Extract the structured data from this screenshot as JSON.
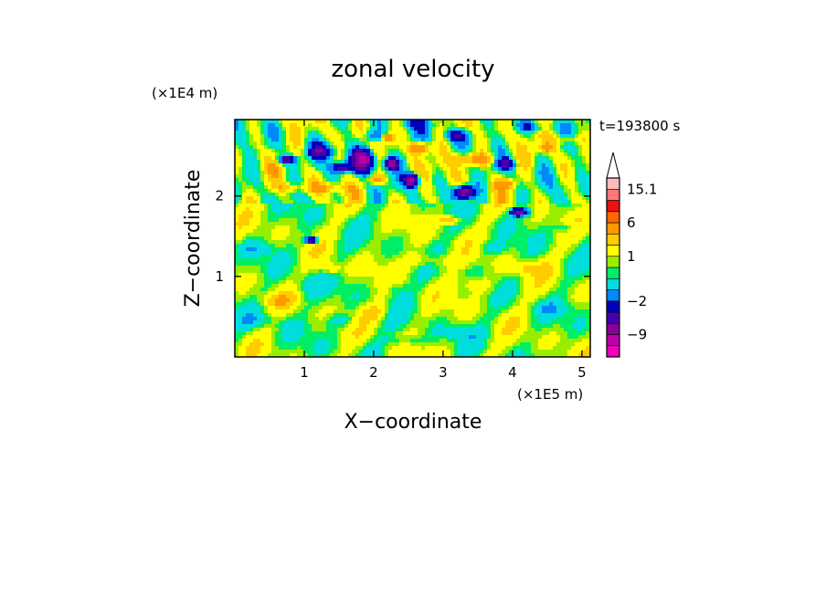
{
  "chart_data": {
    "type": "heatmap",
    "title": "zonal velocity",
    "xlabel": "X−coordinate",
    "ylabel": "Z−coordinate",
    "x_unit_label": "(×1E5 m)",
    "y_unit_label": "(×1E4 m)",
    "time_label": "t=193800 s",
    "xlim": [
      0,
      5.12
    ],
    "ylim": [
      0,
      2.95
    ],
    "x_ticks": [
      1,
      2,
      3,
      4,
      5
    ],
    "y_ticks": [
      1,
      2
    ],
    "x_tick_labels": [
      "1",
      "2",
      "3",
      "4",
      "5"
    ],
    "y_tick_labels": [
      "1",
      "2"
    ],
    "colorbar": {
      "levels": [
        -15,
        -12,
        -9,
        -6,
        -4,
        -2,
        -1,
        0,
        0.5,
        1,
        2,
        3,
        6,
        9,
        12,
        15.1
      ],
      "colors": [
        "#ee00bb",
        "#bb00aa",
        "#880099",
        "#4400aa",
        "#0000bb",
        "#0088ff",
        "#00dddd",
        "#00ee66",
        "#99ee00",
        "#ffff00",
        "#ffcc00",
        "#ff9900",
        "#ff6600",
        "#ee1111",
        "#ff7777",
        "#ffbbbb"
      ],
      "extend_top": true,
      "labels": [
        {
          "value": 15.1,
          "text": "15.1"
        },
        {
          "value": 6,
          "text": "6"
        },
        {
          "value": 1,
          "text": "1"
        },
        {
          "value": -2,
          "text": "−2"
        },
        {
          "value": -9,
          "text": "−9"
        }
      ]
    },
    "background_value": 0.7,
    "features": [
      {
        "x": 0.75,
        "z": 2.45,
        "sx": 0.12,
        "sz": 0.05,
        "v": -7
      },
      {
        "x": 1.25,
        "z": 2.55,
        "sx": 0.18,
        "sz": 0.08,
        "v": -5
      },
      {
        "x": 1.55,
        "z": 2.35,
        "sx": 0.14,
        "sz": 0.06,
        "v": -6
      },
      {
        "x": 1.85,
        "z": 2.45,
        "sx": 0.16,
        "sz": 0.14,
        "v": -10
      },
      {
        "x": 2.25,
        "z": 2.4,
        "sx": 0.1,
        "sz": 0.07,
        "v": -8
      },
      {
        "x": 2.55,
        "z": 2.2,
        "sx": 0.1,
        "sz": 0.08,
        "v": -10
      },
      {
        "x": 3.3,
        "z": 2.05,
        "sx": 0.14,
        "sz": 0.08,
        "v": -9
      },
      {
        "x": 3.2,
        "z": 2.75,
        "sx": 0.2,
        "sz": 0.08,
        "v": -4
      },
      {
        "x": 4.1,
        "z": 1.8,
        "sx": 0.12,
        "sz": 0.05,
        "v": -8
      },
      {
        "x": 3.9,
        "z": 2.4,
        "sx": 0.14,
        "sz": 0.07,
        "v": -5
      },
      {
        "x": 1.1,
        "z": 1.45,
        "sx": 0.08,
        "sz": 0.04,
        "v": -8
      },
      {
        "x": 2.0,
        "z": 2.75,
        "sx": 0.15,
        "sz": 0.08,
        "v": -3
      },
      {
        "x": 2.6,
        "z": 2.9,
        "sx": 0.25,
        "sz": 0.06,
        "v": -2
      },
      {
        "x": 4.3,
        "z": 2.85,
        "sx": 0.3,
        "sz": 0.06,
        "v": -2
      },
      {
        "x": 2.2,
        "z": 2.72,
        "sx": 0.08,
        "sz": 0.05,
        "v": 5
      },
      {
        "x": 2.65,
        "z": 2.6,
        "sx": 0.14,
        "sz": 0.07,
        "v": 6
      },
      {
        "x": 2.05,
        "z": 2.2,
        "sx": 0.12,
        "sz": 0.06,
        "v": 4
      },
      {
        "x": 3.45,
        "z": 2.45,
        "sx": 0.3,
        "sz": 0.08,
        "v": 4
      },
      {
        "x": 3.9,
        "z": 2.15,
        "sx": 0.12,
        "sz": 0.05,
        "v": 4
      },
      {
        "x": 3.1,
        "z": 1.7,
        "sx": 0.15,
        "sz": 0.05,
        "v": 3
      },
      {
        "x": 4.5,
        "z": 2.6,
        "sx": 0.1,
        "sz": 0.05,
        "v": 3
      },
      {
        "x": 1.35,
        "z": 2.1,
        "sx": 0.25,
        "sz": 0.06,
        "v": 2.5
      },
      {
        "x": 0.8,
        "z": 2.1,
        "sx": 0.2,
        "sz": 0.06,
        "v": 2.2
      },
      {
        "x": 4.8,
        "z": 2.7,
        "sx": 0.2,
        "sz": 0.06,
        "v": 2.2
      },
      {
        "x": 1.0,
        "z": 0.9,
        "sx": 0.2,
        "sz": 0.15,
        "v": -1
      },
      {
        "x": 0.4,
        "z": 0.45,
        "sx": 0.3,
        "sz": 0.1,
        "v": -1
      },
      {
        "x": 1.5,
        "z": 0.45,
        "sx": 0.2,
        "sz": 0.08,
        "v": -1.5
      },
      {
        "x": 2.3,
        "z": 0.85,
        "sx": 0.15,
        "sz": 0.1,
        "v": -1
      },
      {
        "x": 3.2,
        "z": 0.3,
        "sx": 0.25,
        "sz": 0.08,
        "v": -1.2
      },
      {
        "x": 4.5,
        "z": 0.6,
        "sx": 0.3,
        "sz": 0.08,
        "v": -1
      },
      {
        "x": 3.7,
        "z": 1.35,
        "sx": 0.25,
        "sz": 0.08,
        "v": -1
      },
      {
        "x": 0.3,
        "z": 1.35,
        "sx": 0.3,
        "sz": 0.08,
        "v": -1
      },
      {
        "x": 4.8,
        "z": 1.6,
        "sx": 0.15,
        "sz": 0.06,
        "v": -1.5
      },
      {
        "x": 2.5,
        "z": 0.2,
        "sx": 0.3,
        "sz": 0.06,
        "v": -1.2
      },
      {
        "x": 1.4,
        "z": 1.1,
        "sx": 0.15,
        "sz": 0.08,
        "v": 1.6
      },
      {
        "x": 2.8,
        "z": 1.2,
        "sx": 0.3,
        "sz": 0.1,
        "v": 1.6
      },
      {
        "x": 3.5,
        "z": 0.9,
        "sx": 0.25,
        "sz": 0.1,
        "v": 1.5
      },
      {
        "x": 4.2,
        "z": 1.1,
        "sx": 0.25,
        "sz": 0.08,
        "v": 1.5
      },
      {
        "x": 0.6,
        "z": 0.7,
        "sx": 0.25,
        "sz": 0.08,
        "v": 1.5
      },
      {
        "x": 2.0,
        "z": 0.55,
        "sx": 0.2,
        "sz": 0.1,
        "v": 1.5
      }
    ]
  }
}
